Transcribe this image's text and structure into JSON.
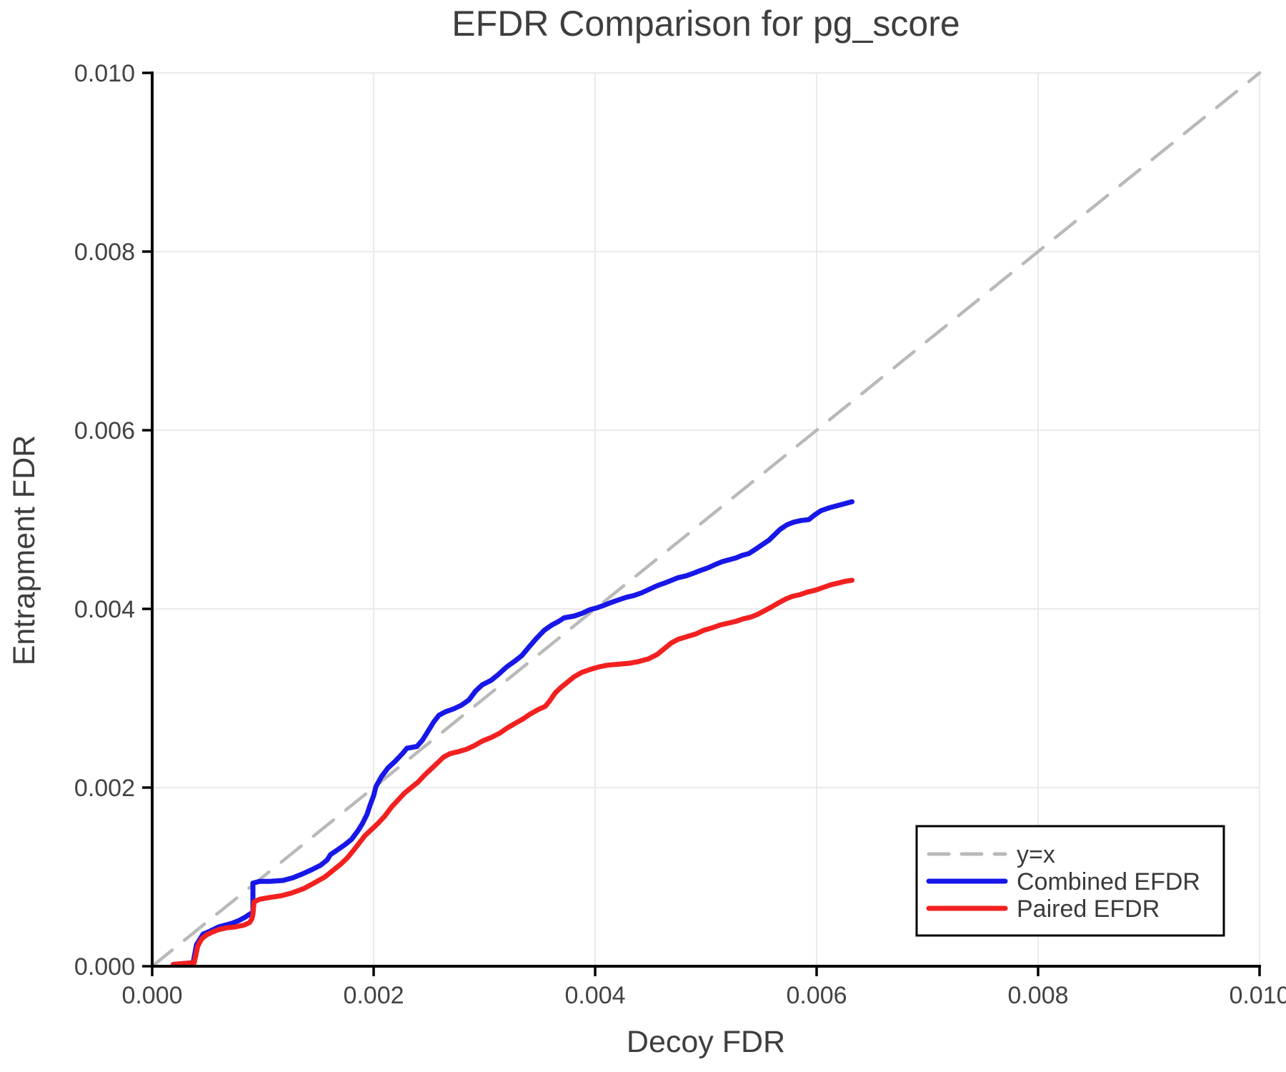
{
  "title": "EFDR Comparison for pg_score",
  "axes": {
    "x": {
      "label": "Decoy FDR",
      "tick_labels": [
        "0.000",
        "0.002",
        "0.004",
        "0.006",
        "0.008",
        "0.010"
      ],
      "tick_values": [
        0,
        0.002,
        0.004,
        0.006,
        0.008,
        0.01
      ]
    },
    "y": {
      "label": "Entrapment FDR",
      "tick_labels": [
        "0.000",
        "0.002",
        "0.004",
        "0.006",
        "0.008",
        "0.010"
      ],
      "tick_values": [
        0,
        0.002,
        0.004,
        0.006,
        0.008,
        0.01
      ]
    }
  },
  "colors": {
    "identity": "#b9b9b9",
    "combined": "#1717e8",
    "paired": "#f32020",
    "grid": "#eaeaea",
    "spine": "#000000",
    "text": "#3e3e3e"
  },
  "legend": {
    "items": [
      {
        "label": "y=x",
        "color": "#b9b9b9",
        "dashed": true
      },
      {
        "label": "Combined EFDR",
        "color": "#1717e8",
        "dashed": false
      },
      {
        "label": "Paired EFDR",
        "color": "#f32020",
        "dashed": false
      }
    ]
  },
  "chart_data": {
    "type": "line",
    "title": "EFDR Comparison for pg_score",
    "xlabel": "Decoy FDR",
    "ylabel": "Entrapment FDR",
    "xlim": [
      0,
      0.01
    ],
    "ylim": [
      0,
      0.01
    ],
    "grid": true,
    "legend_position": "lower right",
    "series": [
      {
        "name": "y=x",
        "style": "dashed",
        "color": "#b9b9b9",
        "points": [
          [
            0,
            0
          ],
          [
            0.01,
            0.01
          ]
        ]
      },
      {
        "name": "Combined EFDR",
        "style": "solid",
        "color": "#1717e8",
        "points": [
          [
            0.00019,
            2e-05
          ],
          [
            0.00037,
            4e-05
          ],
          [
            0.0004,
            0.00024
          ],
          [
            0.00042,
            0.00028
          ],
          [
            0.00044,
            0.00032
          ],
          [
            0.00046,
            0.00036
          ],
          [
            0.0005,
            0.00038
          ],
          [
            0.00055,
            0.00041
          ],
          [
            0.0006,
            0.00044
          ],
          [
            0.00066,
            0.00046
          ],
          [
            0.00072,
            0.00048
          ],
          [
            0.00078,
            0.00051
          ],
          [
            0.00084,
            0.00055
          ],
          [
            0.00089,
            0.00059
          ],
          [
            0.00091,
            0.0006
          ],
          [
            0.00091,
            0.00093
          ],
          [
            0.00097,
            0.00095
          ],
          [
            0.00106,
            0.00095
          ],
          [
            0.00118,
            0.00096
          ],
          [
            0.00127,
            0.00099
          ],
          [
            0.00135,
            0.00103
          ],
          [
            0.00144,
            0.00108
          ],
          [
            0.00152,
            0.00113
          ],
          [
            0.00158,
            0.00119
          ],
          [
            0.00161,
            0.00125
          ],
          [
            0.00167,
            0.0013
          ],
          [
            0.00174,
            0.00136
          ],
          [
            0.0018,
            0.00142
          ],
          [
            0.00186,
            0.00152
          ],
          [
            0.0019,
            0.0016
          ],
          [
            0.00194,
            0.0017
          ],
          [
            0.00197,
            0.00181
          ],
          [
            0.002,
            0.00191
          ],
          [
            0.00202,
            0.00201
          ],
          [
            0.00207,
            0.00212
          ],
          [
            0.00213,
            0.00222
          ],
          [
            0.00219,
            0.00229
          ],
          [
            0.00226,
            0.00238
          ],
          [
            0.0023,
            0.00244
          ],
          [
            0.00239,
            0.00246
          ],
          [
            0.00244,
            0.00253
          ],
          [
            0.00249,
            0.00263
          ],
          [
            0.00254,
            0.00273
          ],
          [
            0.00259,
            0.00281
          ],
          [
            0.00265,
            0.00285
          ],
          [
            0.00272,
            0.00288
          ],
          [
            0.00279,
            0.00292
          ],
          [
            0.00286,
            0.00298
          ],
          [
            0.00292,
            0.00308
          ],
          [
            0.00298,
            0.00315
          ],
          [
            0.00306,
            0.0032
          ],
          [
            0.00313,
            0.00327
          ],
          [
            0.0032,
            0.00335
          ],
          [
            0.00328,
            0.00342
          ],
          [
            0.00334,
            0.00348
          ],
          [
            0.0034,
            0.00357
          ],
          [
            0.00347,
            0.00367
          ],
          [
            0.00354,
            0.00376
          ],
          [
            0.00361,
            0.00382
          ],
          [
            0.00367,
            0.00386
          ],
          [
            0.00372,
            0.0039
          ],
          [
            0.00381,
            0.00392
          ],
          [
            0.00388,
            0.00395
          ],
          [
            0.00395,
            0.00399
          ],
          [
            0.00401,
            0.00401
          ],
          [
            0.00408,
            0.00404
          ],
          [
            0.00414,
            0.00407
          ],
          [
            0.00421,
            0.0041
          ],
          [
            0.00428,
            0.00413
          ],
          [
            0.00435,
            0.00415
          ],
          [
            0.00442,
            0.00418
          ],
          [
            0.00449,
            0.00422
          ],
          [
            0.00456,
            0.00426
          ],
          [
            0.00463,
            0.00429
          ],
          [
            0.00469,
            0.00432
          ],
          [
            0.00475,
            0.00435
          ],
          [
            0.00482,
            0.00437
          ],
          [
            0.00489,
            0.0044
          ],
          [
            0.00495,
            0.00443
          ],
          [
            0.00502,
            0.00446
          ],
          [
            0.00509,
            0.0045
          ],
          [
            0.00515,
            0.00453
          ],
          [
            0.00521,
            0.00455
          ],
          [
            0.00527,
            0.00457
          ],
          [
            0.00533,
            0.0046
          ],
          [
            0.00539,
            0.00462
          ],
          [
            0.00545,
            0.00467
          ],
          [
            0.00551,
            0.00472
          ],
          [
            0.00557,
            0.00477
          ],
          [
            0.00562,
            0.00483
          ],
          [
            0.00567,
            0.00489
          ],
          [
            0.00573,
            0.00494
          ],
          [
            0.00579,
            0.00497
          ],
          [
            0.00586,
            0.00499
          ],
          [
            0.00593,
            0.005
          ],
          [
            0.00598,
            0.00505
          ],
          [
            0.00604,
            0.0051
          ],
          [
            0.00611,
            0.00513
          ],
          [
            0.00617,
            0.00515
          ],
          [
            0.00623,
            0.00517
          ],
          [
            0.00629,
            0.00519
          ],
          [
            0.00632,
            0.0052
          ]
        ]
      },
      {
        "name": "Paired EFDR",
        "style": "solid",
        "color": "#f32020",
        "points": [
          [
            0.00019,
            2e-05
          ],
          [
            0.00038,
            4e-05
          ],
          [
            0.00041,
            0.00022
          ],
          [
            0.00043,
            0.00027
          ],
          [
            0.00045,
            0.00031
          ],
          [
            0.00049,
            0.00035
          ],
          [
            0.00054,
            0.00038
          ],
          [
            0.0006,
            0.00041
          ],
          [
            0.00067,
            0.00043
          ],
          [
            0.00075,
            0.00044
          ],
          [
            0.00083,
            0.00046
          ],
          [
            0.00088,
            0.00049
          ],
          [
            0.0009,
            0.00053
          ],
          [
            0.00091,
            0.00058
          ],
          [
            0.00092,
            0.00072
          ],
          [
            0.00097,
            0.00075
          ],
          [
            0.00106,
            0.00077
          ],
          [
            0.00117,
            0.00079
          ],
          [
            0.00126,
            0.00082
          ],
          [
            0.00137,
            0.00087
          ],
          [
            0.00146,
            0.00093
          ],
          [
            0.00156,
            0.001
          ],
          [
            0.00163,
            0.00107
          ],
          [
            0.0017,
            0.00114
          ],
          [
            0.00176,
            0.00121
          ],
          [
            0.00182,
            0.0013
          ],
          [
            0.00187,
            0.00138
          ],
          [
            0.00192,
            0.00146
          ],
          [
            0.00198,
            0.00153
          ],
          [
            0.00204,
            0.0016
          ],
          [
            0.0021,
            0.00168
          ],
          [
            0.00216,
            0.00178
          ],
          [
            0.00222,
            0.00186
          ],
          [
            0.00228,
            0.00194
          ],
          [
            0.00234,
            0.002
          ],
          [
            0.0024,
            0.00206
          ],
          [
            0.00246,
            0.00214
          ],
          [
            0.00252,
            0.00221
          ],
          [
            0.00258,
            0.00228
          ],
          [
            0.00263,
            0.00234
          ],
          [
            0.00269,
            0.00238
          ],
          [
            0.00276,
            0.0024
          ],
          [
            0.00284,
            0.00243
          ],
          [
            0.00291,
            0.00247
          ],
          [
            0.00298,
            0.00252
          ],
          [
            0.00306,
            0.00256
          ],
          [
            0.00314,
            0.00261
          ],
          [
            0.00321,
            0.00267
          ],
          [
            0.00328,
            0.00272
          ],
          [
            0.00335,
            0.00277
          ],
          [
            0.00341,
            0.00282
          ],
          [
            0.00348,
            0.00287
          ],
          [
            0.00355,
            0.00291
          ],
          [
            0.00359,
            0.00297
          ],
          [
            0.00364,
            0.00306
          ],
          [
            0.00369,
            0.00312
          ],
          [
            0.00375,
            0.00318
          ],
          [
            0.00381,
            0.00324
          ],
          [
            0.00388,
            0.00329
          ],
          [
            0.00395,
            0.00332
          ],
          [
            0.00403,
            0.00335
          ],
          [
            0.00411,
            0.00337
          ],
          [
            0.0042,
            0.00338
          ],
          [
            0.0043,
            0.00339
          ],
          [
            0.00439,
            0.00341
          ],
          [
            0.00448,
            0.00344
          ],
          [
            0.00456,
            0.00349
          ],
          [
            0.00463,
            0.00356
          ],
          [
            0.00469,
            0.00362
          ],
          [
            0.00475,
            0.00366
          ],
          [
            0.00483,
            0.00369
          ],
          [
            0.00491,
            0.00372
          ],
          [
            0.00498,
            0.00376
          ],
          [
            0.00506,
            0.00379
          ],
          [
            0.00513,
            0.00382
          ],
          [
            0.0052,
            0.00384
          ],
          [
            0.00527,
            0.00386
          ],
          [
            0.00534,
            0.00389
          ],
          [
            0.00541,
            0.00391
          ],
          [
            0.00547,
            0.00394
          ],
          [
            0.00553,
            0.00398
          ],
          [
            0.00559,
            0.00402
          ],
          [
            0.00566,
            0.00407
          ],
          [
            0.00572,
            0.00411
          ],
          [
            0.00578,
            0.00414
          ],
          [
            0.00585,
            0.00416
          ],
          [
            0.00592,
            0.00419
          ],
          [
            0.00599,
            0.00421
          ],
          [
            0.00606,
            0.00424
          ],
          [
            0.00613,
            0.00427
          ],
          [
            0.0062,
            0.00429
          ],
          [
            0.00626,
            0.00431
          ],
          [
            0.00632,
            0.00432
          ]
        ]
      }
    ]
  }
}
